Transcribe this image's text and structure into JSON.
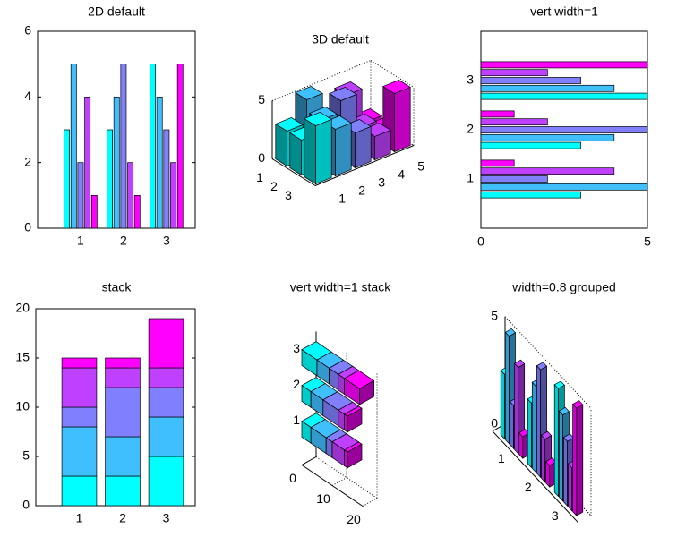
{
  "chart_data": [
    {
      "type": "bar",
      "title": "2D default",
      "categories": [
        "1",
        "2",
        "3"
      ],
      "series": [
        {
          "color": "#00ffff",
          "values": [
            3,
            3,
            5
          ]
        },
        {
          "color": "#40bfff",
          "values": [
            5,
            4,
            4
          ]
        },
        {
          "color": "#8080ff",
          "values": [
            2,
            5,
            3
          ]
        },
        {
          "color": "#bf40ff",
          "values": [
            4,
            2,
            2
          ]
        },
        {
          "color": "#ff00ff",
          "values": [
            1,
            1,
            5
          ]
        }
      ],
      "ylim": [
        0,
        6
      ],
      "yticks": [
        0,
        2,
        4,
        6
      ]
    },
    {
      "type": "bar3",
      "title": "3D default",
      "categories": [
        "1",
        "2",
        "3"
      ],
      "series": [
        {
          "color": "#00ffff",
          "values": [
            3,
            3,
            5
          ]
        },
        {
          "color": "#40bfff",
          "values": [
            5,
            4,
            4
          ]
        },
        {
          "color": "#8080ff",
          "values": [
            2,
            5,
            3
          ]
        },
        {
          "color": "#bf40ff",
          "values": [
            4,
            2,
            2
          ]
        },
        {
          "color": "#ff00ff",
          "values": [
            1,
            1,
            5
          ]
        }
      ],
      "xticks": [
        1,
        2,
        3,
        4,
        5
      ],
      "zlim": [
        0,
        5
      ],
      "zticks": [
        0,
        5
      ]
    },
    {
      "type": "barh",
      "title": "vert width=1",
      "categories": [
        "1",
        "2",
        "3"
      ],
      "series": [
        {
          "color": "#00ffff",
          "values": [
            3,
            3,
            5
          ]
        },
        {
          "color": "#40bfff",
          "values": [
            5,
            4,
            4
          ]
        },
        {
          "color": "#8080ff",
          "values": [
            2,
            5,
            3
          ]
        },
        {
          "color": "#bf40ff",
          "values": [
            4,
            2,
            2
          ]
        },
        {
          "color": "#ff00ff",
          "values": [
            1,
            1,
            5
          ]
        }
      ],
      "xlim": [
        0,
        5
      ],
      "xticks": [
        0,
        5
      ]
    },
    {
      "type": "bar_stacked",
      "title": "stack",
      "categories": [
        "1",
        "2",
        "3"
      ],
      "series": [
        {
          "color": "#00ffff",
          "values": [
            3,
            3,
            5
          ]
        },
        {
          "color": "#40bfff",
          "values": [
            5,
            4,
            4
          ]
        },
        {
          "color": "#8080ff",
          "values": [
            2,
            5,
            3
          ]
        },
        {
          "color": "#bf40ff",
          "values": [
            4,
            2,
            2
          ]
        },
        {
          "color": "#ff00ff",
          "values": [
            1,
            1,
            5
          ]
        }
      ],
      "ylim": [
        0,
        20
      ],
      "yticks": [
        0,
        5,
        10,
        15,
        20
      ]
    },
    {
      "type": "bar3h_stacked",
      "title": "vert width=1 stack",
      "categories": [
        "1",
        "2",
        "3"
      ],
      "series": [
        {
          "color": "#00ffff",
          "values": [
            3,
            3,
            5
          ]
        },
        {
          "color": "#40bfff",
          "values": [
            5,
            4,
            4
          ]
        },
        {
          "color": "#8080ff",
          "values": [
            2,
            5,
            3
          ]
        },
        {
          "color": "#bf40ff",
          "values": [
            4,
            2,
            2
          ]
        },
        {
          "color": "#ff00ff",
          "values": [
            1,
            1,
            5
          ]
        }
      ],
      "xlim": [
        0,
        20
      ],
      "xticks": [
        0,
        10,
        20
      ]
    },
    {
      "type": "bar3_grouped",
      "title": "width=0.8 grouped",
      "categories": [
        "1",
        "2",
        "3"
      ],
      "series": [
        {
          "color": "#00ffff",
          "values": [
            3,
            3,
            5
          ]
        },
        {
          "color": "#40bfff",
          "values": [
            5,
            4,
            4
          ]
        },
        {
          "color": "#8080ff",
          "values": [
            2,
            5,
            3
          ]
        },
        {
          "color": "#bf40ff",
          "values": [
            4,
            2,
            2
          ]
        },
        {
          "color": "#ff00ff",
          "values": [
            1,
            1,
            5
          ]
        }
      ],
      "zlim": [
        0,
        5
      ],
      "zticks": [
        0,
        5
      ]
    }
  ]
}
